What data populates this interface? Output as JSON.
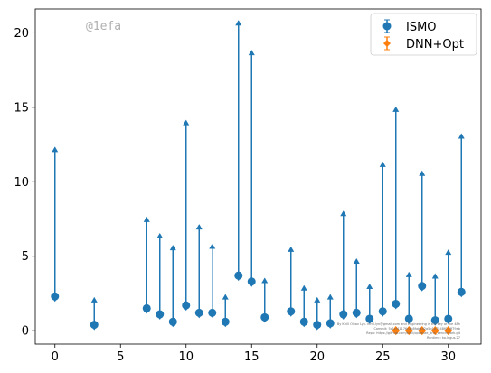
{
  "chart_data": {
    "type": "scatter",
    "title": "",
    "xlabel": "",
    "ylabel": "",
    "xlim": [
      -1.5,
      32.5
    ],
    "ylim": [
      -0.9,
      21.6
    ],
    "xticks": [
      0,
      5,
      10,
      15,
      20,
      25,
      30
    ],
    "yticks": [
      0,
      5,
      10,
      15,
      20
    ],
    "grid": false,
    "legend_position": "top-right",
    "annotation": "@1efa",
    "footnote_lines": [
      "By Kirill Olkov Lyn. Kirill.lyn@gmail.com and Engineering is the key of the 48h",
      "Commit: 5c1cf41176c3b8fab4d2a5b1d7548f0 4ff79ab",
      "Repo: https://github.com/kirill/optimize_dnn_benchmark.git",
      "Runtime: ko.lngus.27"
    ],
    "series": [
      {
        "name": "ISMO",
        "color": "#1f77b4",
        "marker": "circle",
        "errorbar": "upper-limit",
        "points": [
          {
            "x": 0,
            "y": 2.3,
            "upper": 12.3
          },
          {
            "x": 3,
            "y": 0.4,
            "upper": 2.2
          },
          {
            "x": 7,
            "y": 1.5,
            "upper": 7.6
          },
          {
            "x": 8,
            "y": 1.1,
            "upper": 6.5
          },
          {
            "x": 9,
            "y": 0.6,
            "upper": 5.7
          },
          {
            "x": 10,
            "y": 1.7,
            "upper": 14.1
          },
          {
            "x": 11,
            "y": 1.2,
            "upper": 7.1
          },
          {
            "x": 12,
            "y": 1.2,
            "upper": 5.8
          },
          {
            "x": 13,
            "y": 0.6,
            "upper": 2.4
          },
          {
            "x": 14,
            "y": 3.7,
            "upper": 20.8
          },
          {
            "x": 15,
            "y": 3.3,
            "upper": 18.8
          },
          {
            "x": 16,
            "y": 0.9,
            "upper": 3.5
          },
          {
            "x": 18,
            "y": 1.3,
            "upper": 5.6
          },
          {
            "x": 19,
            "y": 0.6,
            "upper": 3.0
          },
          {
            "x": 20,
            "y": 0.4,
            "upper": 2.2
          },
          {
            "x": 21,
            "y": 0.5,
            "upper": 2.4
          },
          {
            "x": 22,
            "y": 1.1,
            "upper": 8.0
          },
          {
            "x": 23,
            "y": 1.2,
            "upper": 4.8
          },
          {
            "x": 24,
            "y": 0.8,
            "upper": 3.1
          },
          {
            "x": 25,
            "y": 1.3,
            "upper": 11.3
          },
          {
            "x": 26,
            "y": 1.8,
            "upper": 15.0
          },
          {
            "x": 27,
            "y": 0.8,
            "upper": 3.9
          },
          {
            "x": 28,
            "y": 3.0,
            "upper": 10.7
          },
          {
            "x": 29,
            "y": 0.7,
            "upper": 3.8
          },
          {
            "x": 30,
            "y": 0.8,
            "upper": 5.4
          },
          {
            "x": 31,
            "y": 2.6,
            "upper": 13.2
          }
        ]
      },
      {
        "name": "DNN+Opt",
        "color": "#ff7f0e",
        "marker": "diamond",
        "errorbar": "upper-limit",
        "points": [
          {
            "x": 26,
            "y": 0.0,
            "upper": 0.25
          },
          {
            "x": 27,
            "y": 0.0,
            "upper": 0.25
          },
          {
            "x": 28,
            "y": 0.0,
            "upper": 0.25
          },
          {
            "x": 29,
            "y": 0.0,
            "upper": 0.25
          },
          {
            "x": 30,
            "y": 0.0,
            "upper": 0.25
          }
        ]
      }
    ]
  }
}
